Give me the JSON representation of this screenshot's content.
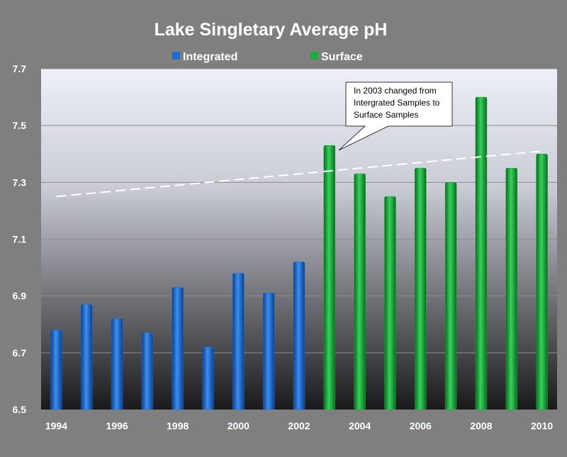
{
  "chart_data": {
    "type": "bar",
    "title": "Lake Singletary Average pH",
    "xlabel": "",
    "ylabel": "",
    "ylim": [
      6.5,
      7.7
    ],
    "yticks": [
      "6.5",
      "6.7",
      "6.9",
      "7.1",
      "7.3",
      "7.5",
      "7.7"
    ],
    "xtick_labels": [
      "1994",
      "1996",
      "1998",
      "2000",
      "2002",
      "2004",
      "2006",
      "2008",
      "2010"
    ],
    "categories": [
      "1994",
      "1995",
      "1996",
      "1997",
      "1998",
      "1999",
      "2000",
      "2001",
      "2002",
      "2003",
      "2004",
      "2005",
      "2006",
      "2007",
      "2008",
      "2009",
      "2010"
    ],
    "series": [
      {
        "name": "Integrated",
        "color": "#1e6fd0",
        "values": [
          6.78,
          6.87,
          6.82,
          6.77,
          6.93,
          6.72,
          6.98,
          6.91,
          7.02,
          null,
          null,
          null,
          null,
          null,
          null,
          null,
          null
        ]
      },
      {
        "name": "Surface",
        "color": "#1faa3c",
        "values": [
          null,
          null,
          null,
          null,
          null,
          null,
          null,
          null,
          null,
          7.43,
          7.33,
          7.25,
          7.35,
          7.3,
          7.6,
          7.35,
          7.4
        ]
      }
    ],
    "trendline": {
      "style": "dashed",
      "color": "#ffffff",
      "start": [
        "1994",
        7.25
      ],
      "end": [
        "2010",
        7.41
      ]
    },
    "grid": true,
    "legend_position": "top-center",
    "annotation": {
      "lines": [
        "In 2003 changed from",
        "Intergrated Samples to",
        "Surface Samples"
      ],
      "points_to": "2003"
    }
  }
}
